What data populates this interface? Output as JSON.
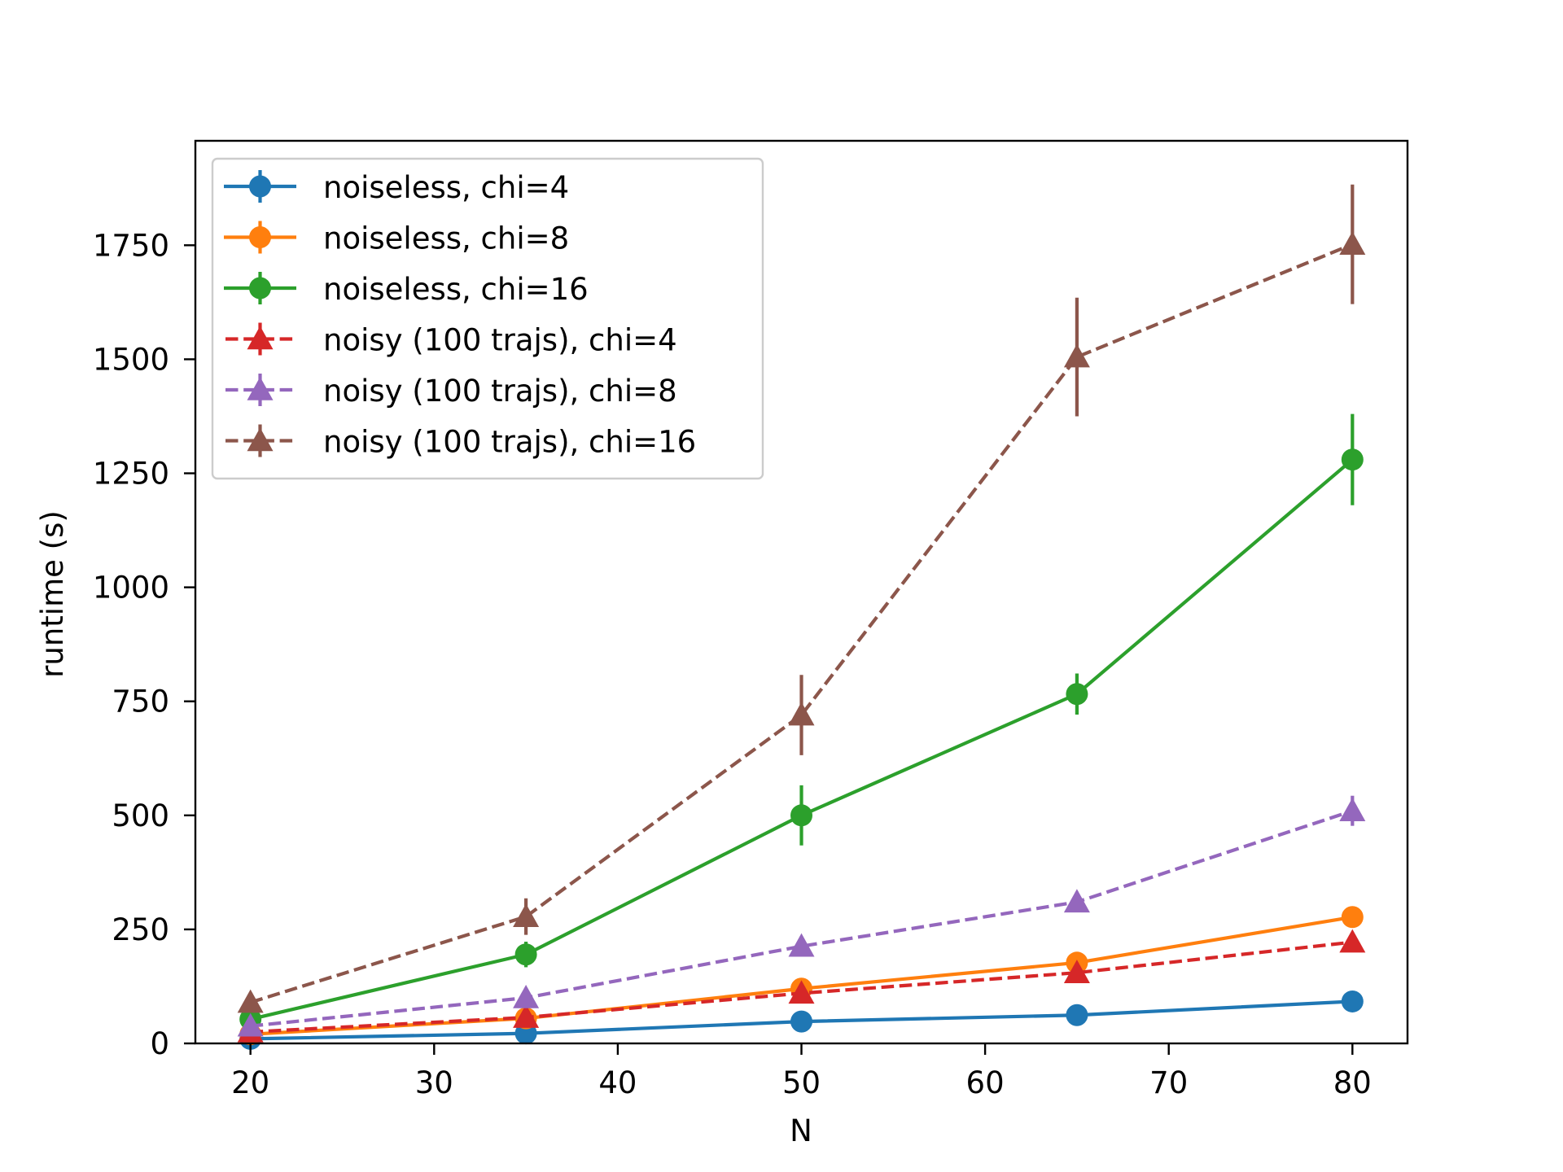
{
  "chart_data": {
    "type": "line",
    "title": "",
    "xlabel": "N",
    "ylabel": "runtime (s)",
    "xlim": [
      17,
      83
    ],
    "ylim": [
      0,
      1979
    ],
    "xticks": [
      20,
      30,
      40,
      50,
      60,
      70,
      80
    ],
    "xtick_labels": [
      "20",
      "30",
      "40",
      "50",
      "60",
      "70",
      "80"
    ],
    "yticks": [
      0,
      250,
      500,
      750,
      1000,
      1250,
      1500,
      1750
    ],
    "ytick_labels": [
      "0",
      "250",
      "500",
      "750",
      "1000",
      "1250",
      "1500",
      "1750"
    ],
    "grid": false,
    "legend_position": "upper-left",
    "x": [
      20,
      35,
      50,
      65,
      80
    ],
    "series": [
      {
        "name": "noiseless, chi=4",
        "color": "#1f77b4",
        "marker": "circle",
        "linestyle": "solid",
        "values": [
          10,
          22,
          48,
          62,
          92
        ],
        "errors": [
          3,
          4,
          6,
          8,
          12
        ]
      },
      {
        "name": "noiseless, chi=8",
        "color": "#ff7f0e",
        "marker": "circle",
        "linestyle": "solid",
        "values": [
          20,
          55,
          120,
          177,
          277
        ],
        "errors": [
          4,
          6,
          10,
          14,
          18
        ]
      },
      {
        "name": "noiseless, chi=16",
        "color": "#2ca02c",
        "marker": "circle",
        "linestyle": "solid",
        "values": [
          53,
          195,
          500,
          766,
          1280
        ],
        "errors": [
          8,
          28,
          66,
          45,
          100
        ]
      },
      {
        "name": "noisy (100 trajs), chi=4",
        "color": "#d62728",
        "marker": "triangle",
        "linestyle": "dashed",
        "values": [
          25,
          57,
          110,
          155,
          222
        ],
        "errors": [
          4,
          6,
          10,
          12,
          16
        ]
      },
      {
        "name": "noisy (100 trajs), chi=8",
        "color": "#9467bd",
        "marker": "triangle",
        "linestyle": "dashed",
        "values": [
          38,
          100,
          213,
          310,
          510
        ],
        "errors": [
          5,
          10,
          18,
          22,
          33
        ]
      },
      {
        "name": "noisy (100 trajs), chi=16",
        "color": "#8c564b",
        "marker": "triangle",
        "linestyle": "dashed",
        "values": [
          90,
          278,
          720,
          1505,
          1752
        ],
        "errors": [
          12,
          40,
          88,
          130,
          131
        ]
      }
    ]
  }
}
